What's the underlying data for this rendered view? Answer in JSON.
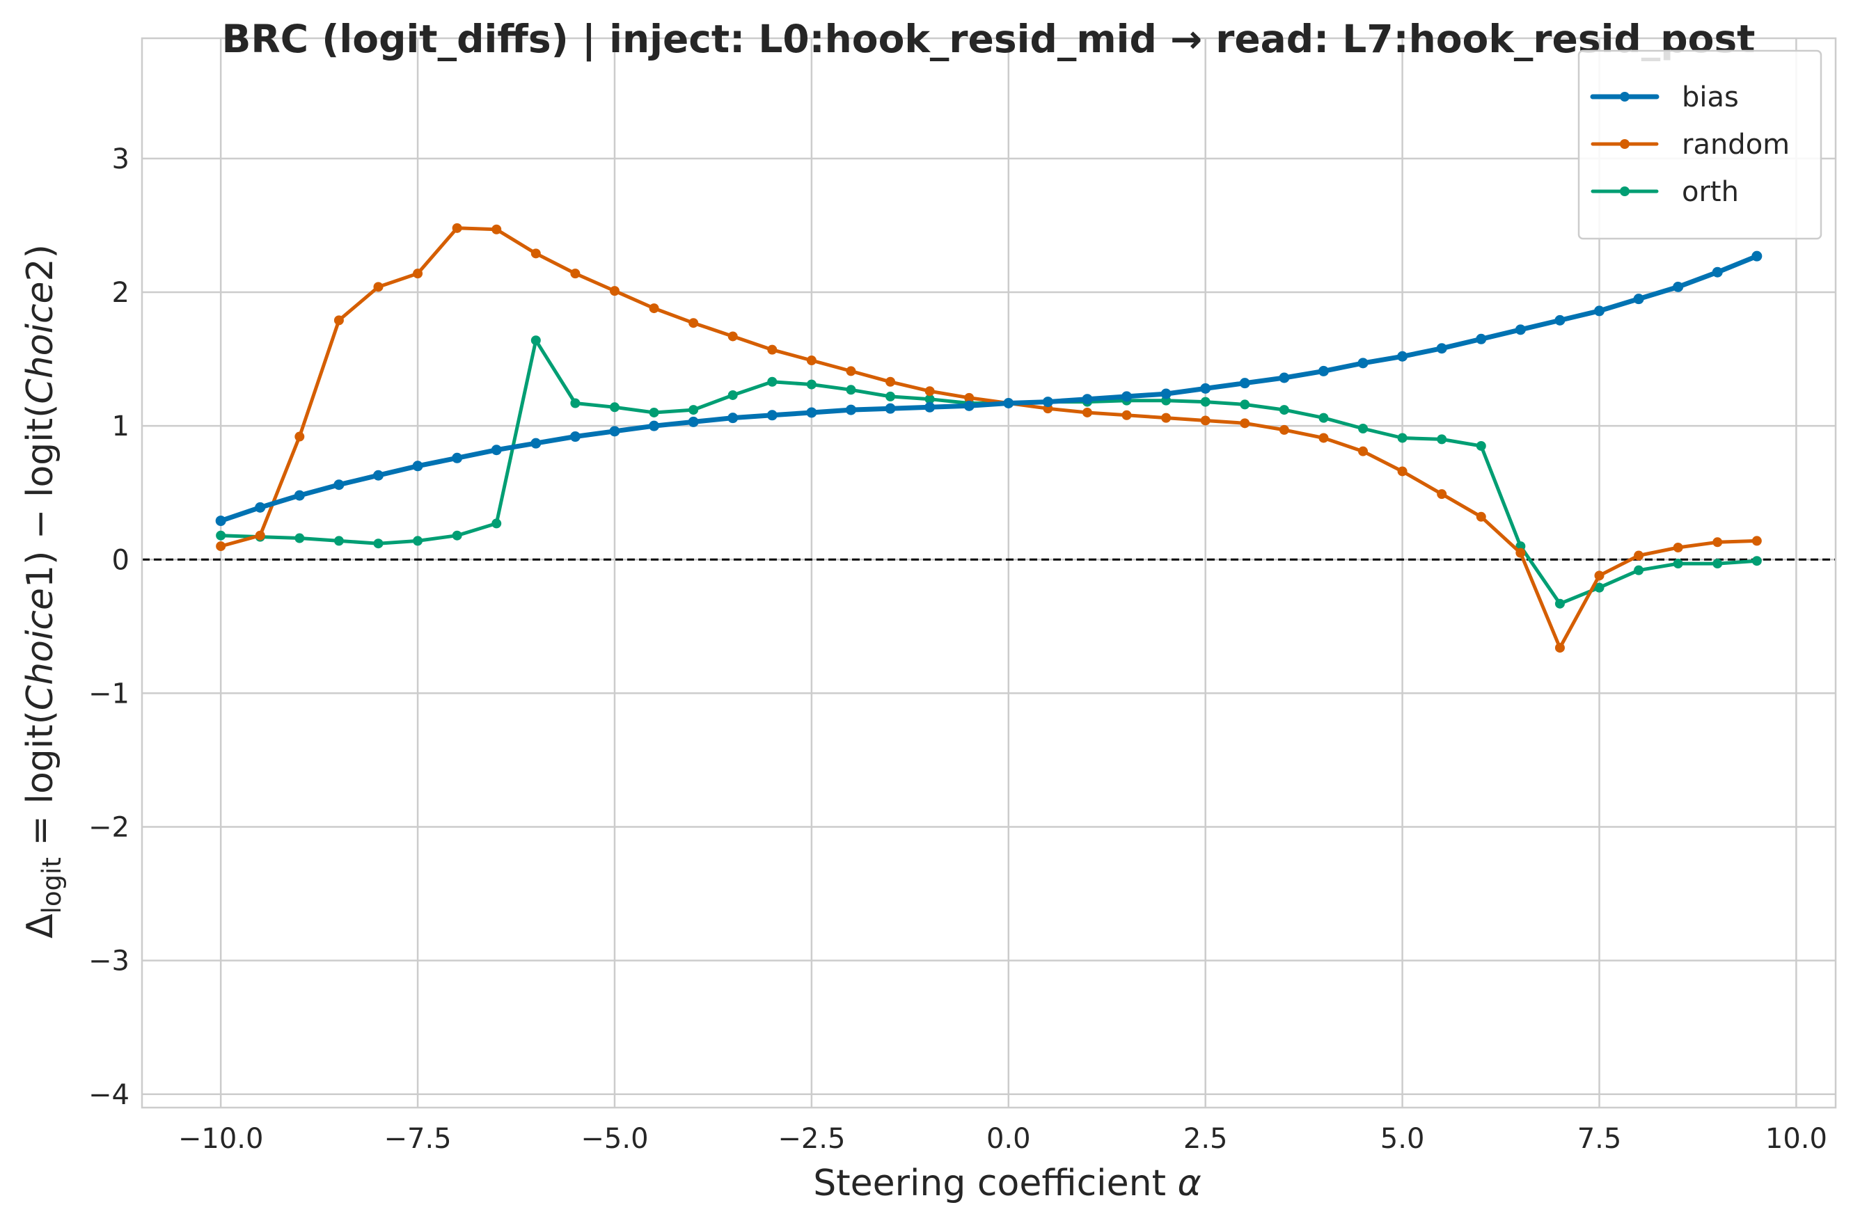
{
  "chart_data": {
    "type": "line",
    "title": "BRC (logit_diffs) | inject: L0:hook_resid_mid → read: L7:hook_resid_post",
    "xlabel": "Steering coefficient α",
    "ylabel": "Δlogit = logit(Choice1) − logit(Choice2)",
    "ylabel_parts": {
      "delta": "Δ",
      "sub": "logit",
      "rest_1": " = logit(",
      "italic_1": "Choice",
      "rest_2": "1) − logit(",
      "italic_2": "Choice",
      "rest_3": "2)"
    },
    "xlim": [
      -11,
      10.5
    ],
    "ylim": [
      -4.1,
      3.9
    ],
    "x_ticks": [
      -10,
      -7.5,
      -5,
      -2.5,
      0,
      2.5,
      5,
      7.5,
      10
    ],
    "x_tick_labels": [
      "−10.0",
      "−7.5",
      "−5.0",
      "−2.5",
      "0.0",
      "2.5",
      "5.0",
      "7.5",
      "10.0"
    ],
    "y_ticks": [
      -4,
      -3,
      -2,
      -1,
      0,
      1,
      2,
      3
    ],
    "y_tick_labels": [
      "−4",
      "−3",
      "−2",
      "−1",
      "0",
      "1",
      "2",
      "3"
    ],
    "grid": true,
    "reference_line": {
      "y": 0,
      "style": "dashed",
      "color": "#000000"
    },
    "legend_position": "top-right",
    "x": [
      -10,
      -9.5,
      -9,
      -8.5,
      -8,
      -7.5,
      -7,
      -6.5,
      -6,
      -5.5,
      -5,
      -4.5,
      -4,
      -3.5,
      -3,
      -2.5,
      -2,
      -1.5,
      -1,
      -0.5,
      0,
      0.5,
      1,
      1.5,
      2,
      2.5,
      3,
      3.5,
      4,
      4.5,
      5,
      5.5,
      6,
      6.5,
      7,
      7.5,
      8,
      8.5,
      9,
      9.5
    ],
    "series": [
      {
        "name": "bias",
        "color": "#0072B2",
        "width": 7,
        "values": [
          0.29,
          0.39,
          0.48,
          0.56,
          0.63,
          0.7,
          0.76,
          0.82,
          0.87,
          0.92,
          0.96,
          1.0,
          1.03,
          1.06,
          1.08,
          1.1,
          1.12,
          1.13,
          1.14,
          1.15,
          1.17,
          1.18,
          1.2,
          1.22,
          1.24,
          1.28,
          1.32,
          1.36,
          1.41,
          1.47,
          1.52,
          1.58,
          1.65,
          1.72,
          1.79,
          1.86,
          1.95,
          2.04,
          2.15,
          2.27
        ]
      },
      {
        "name": "random",
        "color": "#D55E00",
        "width": 5,
        "values": [
          0.1,
          0.18,
          0.92,
          1.79,
          2.04,
          2.14,
          2.48,
          2.47,
          2.29,
          2.14,
          2.01,
          1.88,
          1.77,
          1.67,
          1.57,
          1.49,
          1.41,
          1.33,
          1.26,
          1.21,
          1.17,
          1.13,
          1.1,
          1.08,
          1.06,
          1.04,
          1.02,
          0.97,
          0.91,
          0.81,
          0.66,
          0.49,
          0.32,
          0.05,
          -0.66,
          -0.12,
          0.03,
          0.09,
          0.13,
          0.14
        ]
      },
      {
        "name": "orth",
        "color": "#009E73",
        "width": 5,
        "values": [
          0.18,
          0.17,
          0.16,
          0.14,
          0.12,
          0.14,
          0.18,
          0.27,
          1.64,
          1.17,
          1.14,
          1.1,
          1.12,
          1.23,
          1.33,
          1.31,
          1.27,
          1.22,
          1.2,
          1.17,
          1.17,
          1.18,
          1.18,
          1.19,
          1.19,
          1.18,
          1.16,
          1.12,
          1.06,
          0.98,
          0.91,
          0.9,
          0.85,
          0.1,
          -0.33,
          -0.21,
          -0.08,
          -0.03,
          -0.03,
          -0.01
        ]
      }
    ]
  }
}
